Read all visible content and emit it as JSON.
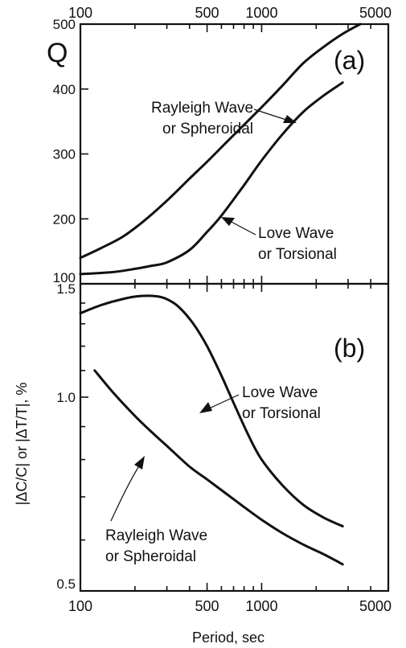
{
  "chart_data": [
    {
      "type": "line",
      "panel_label": "(a)",
      "xscale": "log",
      "xlim": [
        100,
        5000
      ],
      "x_tick_labels": [
        "100",
        "500",
        "1000",
        "5000"
      ],
      "x_tick_label_position": "top",
      "ylabel": "Q",
      "ylim": [
        100,
        500
      ],
      "y_ticks": [
        100,
        200,
        300,
        400,
        500
      ],
      "grid": false,
      "series": [
        {
          "name": "Rayleigh Wave or Spheroidal",
          "label_lines": [
            "Rayleigh Wave",
            "or Spheroidal"
          ],
          "x": [
            100,
            130,
            170,
            220,
            300,
            400,
            500,
            650,
            800,
            1000,
            1300,
            1700,
            2200,
            2800,
            3500
          ],
          "y": [
            140,
            155,
            172,
            195,
            228,
            262,
            288,
            320,
            345,
            372,
            405,
            440,
            465,
            485,
            500
          ]
        },
        {
          "name": "Love Wave or Torsional",
          "label_lines": [
            "Love Wave",
            "or Torsional"
          ],
          "x": [
            100,
            150,
            200,
            250,
            300,
            400,
            500,
            600,
            800,
            1000,
            1300,
            1700,
            2200,
            2800
          ],
          "y": [
            115,
            118,
            123,
            128,
            133,
            152,
            180,
            205,
            252,
            290,
            330,
            365,
            390,
            410
          ]
        }
      ]
    },
    {
      "type": "line",
      "panel_label": "(b)",
      "xscale": "log",
      "xlim": [
        100,
        5000
      ],
      "x_tick_labels": [
        "100",
        "500",
        "1000",
        "5000"
      ],
      "xlabel": "Period, sec",
      "yscale": "log",
      "ylabel": "|ΔC/C| or |ΔT/T|, %",
      "ylim": [
        0.5,
        1.5
      ],
      "y_tick_labels": [
        "0.5",
        "1.0",
        "1.5"
      ],
      "grid": false,
      "series": [
        {
          "name": "Love Wave or Torsional",
          "label_lines": [
            "Love Wave",
            "or Torsional"
          ],
          "x": [
            100,
            130,
            170,
            210,
            260,
            300,
            350,
            420,
            500,
            600,
            700,
            850,
            1000,
            1300,
            1700,
            2200,
            2800
          ],
          "y": [
            1.35,
            1.39,
            1.42,
            1.435,
            1.435,
            1.42,
            1.38,
            1.3,
            1.2,
            1.08,
            0.98,
            0.87,
            0.8,
            0.73,
            0.68,
            0.65,
            0.63
          ]
        },
        {
          "name": "Rayleigh Wave or Spheroidal",
          "label_lines": [
            "Rayleigh Wave",
            "or Spheroidal"
          ],
          "x": [
            120,
            150,
            200,
            250,
            300,
            400,
            500,
            650,
            800,
            1000,
            1300,
            1700,
            2200,
            2800
          ],
          "y": [
            1.1,
            1.02,
            0.935,
            0.88,
            0.84,
            0.78,
            0.745,
            0.705,
            0.675,
            0.645,
            0.615,
            0.59,
            0.57,
            0.55
          ]
        }
      ]
    }
  ]
}
